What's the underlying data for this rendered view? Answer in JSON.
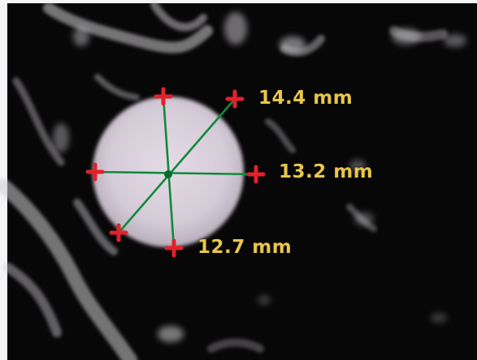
{
  "viewer": {
    "background_color": "#050405",
    "vessel_color": "#cfcdd0",
    "lesion_fill_color": "#ddd3de",
    "measurement_line_color": "#0f8a3c",
    "endpoint_marker_color": "#e0222c",
    "label_color": "#e7c64a",
    "endpoint_marker_icon": "plus-cross-icon",
    "measurements": [
      {
        "id": "m1",
        "label": "14.4 mm"
      },
      {
        "id": "m2",
        "label": "13.2 mm"
      },
      {
        "id": "m3",
        "label": "12.7 mm"
      }
    ]
  }
}
